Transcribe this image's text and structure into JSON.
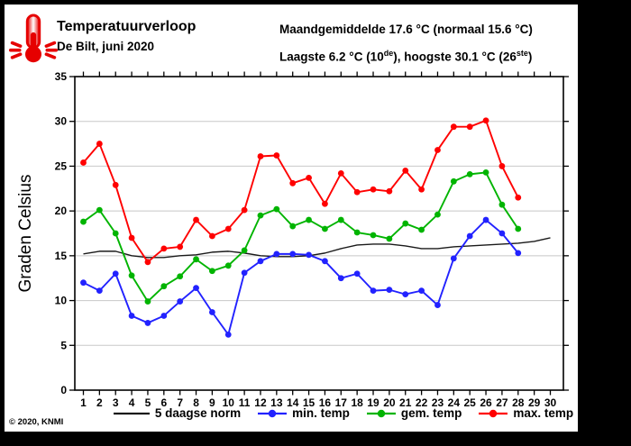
{
  "window": {
    "copyright": "© 2020, KNMI"
  },
  "header": {
    "title": "Temperatuurverloop",
    "subtitle": "De Bilt, juni 2020",
    "stats_line1": "Maandgemiddelde 17.6 °C (normaal 15.6 °C)",
    "stats_line2": {
      "p1": "Laagste 6.2 °C (10",
      "sup1": "de",
      "p2": "), hoogste 30.1 °C (26",
      "sup2": "ste",
      "p3": ")"
    }
  },
  "chart_data": {
    "type": "line",
    "title": "Temperatuurverloop De Bilt, juni 2020",
    "xlabel": "",
    "ylabel": "Graden Celsius",
    "ylim": [
      0,
      35
    ],
    "ytick_step": 5,
    "grid": "horizontal-only",
    "legend_position": "bottom",
    "x": [
      1,
      2,
      3,
      4,
      5,
      6,
      7,
      8,
      9,
      10,
      11,
      12,
      13,
      14,
      15,
      16,
      17,
      18,
      19,
      20,
      21,
      22,
      23,
      24,
      25,
      26,
      27,
      28,
      29,
      30
    ],
    "series": [
      {
        "name": "5 daagse norm",
        "color": "#1a1a1a",
        "marker": false,
        "values": [
          15.2,
          15.5,
          15.5,
          15.0,
          14.8,
          14.8,
          15.0,
          15.1,
          15.4,
          15.5,
          15.3,
          15.0,
          14.9,
          14.9,
          15.0,
          15.3,
          15.8,
          16.2,
          16.3,
          16.3,
          16.1,
          15.8,
          15.8,
          16.0,
          16.1,
          16.2,
          16.3,
          16.4,
          16.6,
          17.0
        ]
      },
      {
        "name": "min. temp",
        "color": "#2222ff",
        "marker": true,
        "values": [
          12.0,
          11.1,
          13.0,
          8.3,
          7.5,
          8.3,
          9.9,
          11.4,
          8.7,
          6.2,
          13.1,
          14.4,
          15.2,
          15.2,
          15.1,
          14.4,
          12.5,
          13.0,
          11.1,
          11.2,
          10.7,
          11.1,
          9.5,
          14.7,
          17.2,
          19.0,
          17.5,
          15.3,
          null,
          null
        ]
      },
      {
        "name": "gem. temp",
        "color": "#00b400",
        "marker": true,
        "values": [
          18.8,
          20.1,
          17.5,
          12.8,
          9.9,
          11.6,
          12.7,
          14.6,
          13.3,
          13.9,
          15.6,
          19.5,
          20.2,
          18.3,
          19.0,
          18.0,
          19.0,
          17.6,
          17.3,
          16.9,
          18.6,
          17.9,
          19.6,
          23.3,
          24.1,
          24.3,
          20.7,
          18.0,
          null,
          null
        ]
      },
      {
        "name": "max. temp",
        "color": "#ff0000",
        "marker": true,
        "values": [
          25.4,
          27.5,
          22.9,
          17.0,
          14.3,
          15.8,
          16.0,
          19.0,
          17.2,
          18.0,
          20.1,
          26.1,
          26.2,
          23.1,
          23.7,
          20.8,
          24.2,
          22.1,
          22.4,
          22.2,
          24.5,
          22.4,
          26.8,
          29.4,
          29.4,
          30.1,
          25.0,
          21.5,
          null,
          null
        ]
      }
    ]
  }
}
